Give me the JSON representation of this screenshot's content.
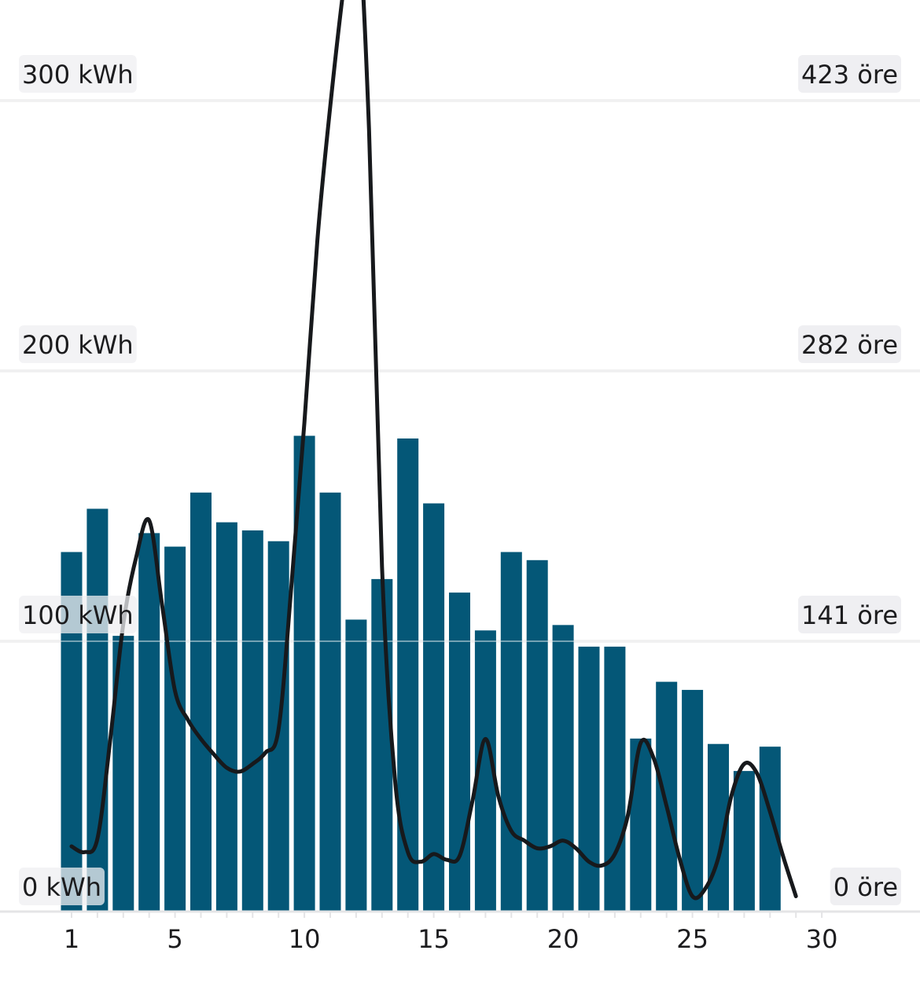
{
  "chart_data": {
    "type": "bar",
    "x": [
      1,
      2,
      3,
      4,
      5,
      6,
      7,
      8,
      9,
      10,
      11,
      12,
      13,
      14,
      15,
      16,
      17,
      18,
      19,
      20,
      21,
      22,
      23,
      24,
      25,
      26,
      27,
      28
    ],
    "x_ticks": [
      "1",
      "5",
      "10",
      "15",
      "20",
      "25",
      "30"
    ],
    "x_tick_values": [
      1,
      5,
      10,
      15,
      20,
      25,
      30
    ],
    "xlim": [
      1,
      30
    ],
    "series": [
      {
        "type": "bar",
        "axis": "left",
        "values": [
          133,
          149,
          102,
          140,
          135,
          155,
          144,
          141,
          137,
          176,
          155,
          108,
          123,
          175,
          151,
          118,
          104,
          133,
          130,
          106,
          98,
          98,
          64,
          85,
          82,
          62,
          52,
          61
        ]
      },
      {
        "type": "line",
        "axis": "right",
        "x": [
          1,
          1.5,
          2,
          2.5,
          3,
          3.5,
          4,
          4.5,
          5,
          5.5,
          6,
          6.5,
          7,
          7.5,
          8,
          8.5,
          9,
          9.5,
          10,
          10.5,
          11,
          11.5,
          12,
          12.5,
          13,
          13.5,
          14,
          14.5,
          15,
          15.5,
          16,
          16.5,
          17,
          17.5,
          18,
          18.5,
          19,
          19.5,
          20,
          20.5,
          21,
          21.5,
          22,
          22.5,
          23,
          23.5,
          24,
          24.5,
          25,
          25.5,
          26,
          26.5,
          27,
          27.5,
          28,
          28.5,
          29
        ],
        "values": [
          34,
          31,
          38,
          90,
          150,
          185,
          204,
          160,
          115,
          100,
          90,
          82,
          75,
          73,
          77,
          83,
          95,
          170,
          255,
          350,
          420,
          480,
          528,
          408,
          180,
          69,
          31,
          26,
          30,
          27,
          29,
          58,
          90,
          60,
          42,
          37,
          33,
          34,
          37,
          33,
          26,
          24,
          30,
          50,
          88,
          80,
          55,
          28,
          8,
          12,
          28,
          60,
          77,
          72,
          52,
          29,
          8
        ]
      }
    ],
    "ylim_left": [
      0,
      300
    ],
    "ylim_right": [
      0,
      423
    ],
    "left_ticks": [
      "0 kWh",
      "100 kWh",
      "200 kWh",
      "300 kWh"
    ],
    "right_ticks": [
      "0 öre",
      "141 öre",
      "282 öre",
      "423 öre"
    ],
    "colors": {
      "bar": "#045777",
      "line": "#17191c",
      "grid": "#e4e4e6",
      "label_bg": "#efeff2",
      "text": "#1c1c1e"
    },
    "grid": true
  }
}
